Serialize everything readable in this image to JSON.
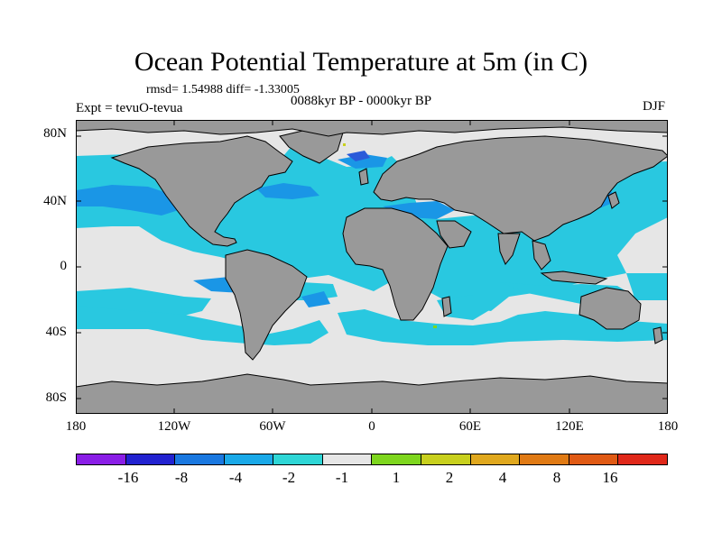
{
  "title": "Ocean Potential Temperature at 5m (in C)",
  "stats": "rmsd= 1.54988 diff= -1.33005",
  "experiment": "Expt = tevuO-tevua",
  "period": "0088kyr BP - 0000kyr BP",
  "season": "DJF",
  "y_ticks": [
    "80N",
    "40N",
    "0",
    "40S",
    "80S"
  ],
  "x_ticks": [
    "180",
    "120W",
    "60W",
    "0",
    "60E",
    "120E",
    "180"
  ],
  "colors": {
    "land": "#999999",
    "ocean_cyan": "#29c8e0",
    "ocean_blue": "#1a96e6",
    "ocean_neutral": "#e6e6e6",
    "ocean_deep_blue": "#2a5ad9",
    "ocean_light_teal": "#34d9d2"
  },
  "colorbar": {
    "colors": [
      "#8a1ee6",
      "#2222d0",
      "#1a78e0",
      "#1aa9e8",
      "#2ed6d6",
      "#e6e6e6",
      "#7ed61e",
      "#c8d01e",
      "#e0a81e",
      "#e07a14",
      "#e05a14",
      "#e0281a"
    ],
    "labels": [
      "-16",
      "-8",
      "-4",
      "-2",
      "-1",
      "1",
      "2",
      "4",
      "8",
      "16"
    ]
  }
}
